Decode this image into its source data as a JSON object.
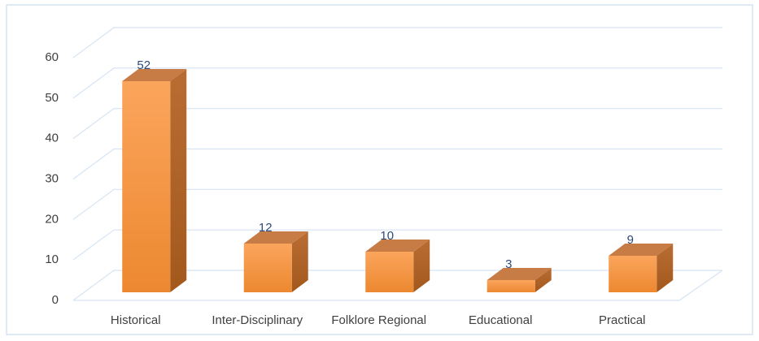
{
  "chart_data": {
    "type": "bar3d",
    "categories": [
      "Historical",
      "Inter-Disciplinary",
      "Folklore Regional",
      "Educational",
      "Practical"
    ],
    "values": [
      52,
      12,
      10,
      3,
      9
    ],
    "color": "#f7983f",
    "ylim": [
      0,
      60
    ],
    "yticks": [
      0,
      10,
      20,
      30,
      40,
      50,
      60
    ],
    "grid": true
  }
}
